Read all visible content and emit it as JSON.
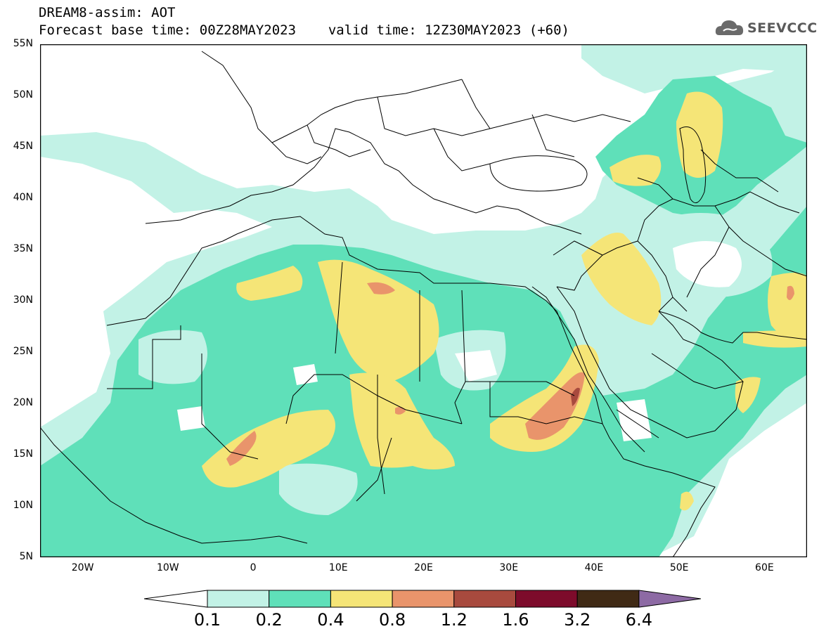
{
  "header": {
    "model_line": "DREAM8-assim: AOT",
    "base_time_line": "Forecast base time: 00Z28MAY2023",
    "valid_time_line": "valid time: 12Z30MAY2023 (+60)"
  },
  "logo": {
    "text": "SEEVCCC",
    "icon": "cloud-logo-icon"
  },
  "map": {
    "lat_labels": [
      "55N",
      "50N",
      "45N",
      "40N",
      "35N",
      "30N",
      "25N",
      "20N",
      "15N",
      "10N",
      "5N"
    ],
    "lon_labels": [
      "20W",
      "10W",
      "0",
      "10E",
      "20E",
      "30E",
      "40E",
      "50E",
      "60E"
    ],
    "lon_range": [
      -25,
      65
    ],
    "lat_range": [
      5,
      55
    ],
    "quantity": "AOT"
  },
  "colorbar": {
    "levels": [
      "0.1",
      "0.2",
      "0.4",
      "0.8",
      "1.2",
      "1.6",
      "3.2",
      "6.4"
    ],
    "colors": [
      "#ffffff",
      "#c2f2e6",
      "#5fe0b9",
      "#f5e577",
      "#e9946b",
      "#a84a3e",
      "#7d0b2b",
      "#402a15",
      "#8d6aa4"
    ]
  }
}
